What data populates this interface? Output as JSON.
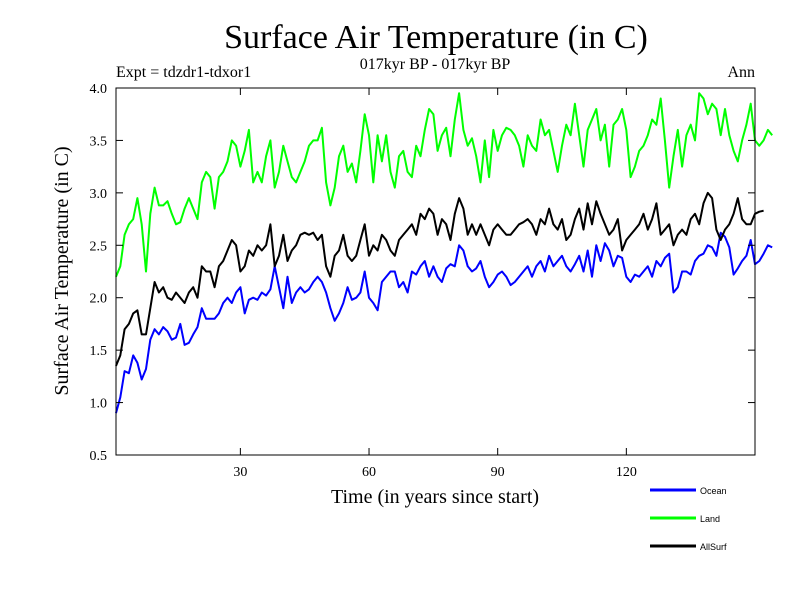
{
  "chart_data": {
    "type": "line",
    "title": "Surface Air Temperature (in C)",
    "subtitle": "017kyr BP - 017kyr BP",
    "experiment": "Expt = tdzdr1-tdxor1",
    "season": "Ann",
    "xlabel": "Time (in years since start)",
    "ylabel": "Surface Air Temperature (in C)",
    "xlim": [
      1,
      150
    ],
    "ylim": [
      0.5,
      4.0
    ],
    "xticks": [
      30,
      60,
      90,
      120
    ],
    "yticks": [
      0.5,
      1.0,
      1.5,
      2.0,
      2.5,
      3.0,
      3.5,
      4.0
    ],
    "ytick_labels": [
      "0.5",
      "1.0",
      "1.5",
      "2.0",
      "2.5",
      "3.0",
      "3.5",
      "4.0"
    ],
    "x_start": 1,
    "series": [
      {
        "name": "Ocean",
        "color": "#0000ff",
        "values": [
          0.9,
          1.05,
          1.3,
          1.28,
          1.45,
          1.38,
          1.22,
          1.32,
          1.6,
          1.7,
          1.65,
          1.72,
          1.68,
          1.6,
          1.62,
          1.75,
          1.55,
          1.57,
          1.65,
          1.72,
          1.9,
          1.8,
          1.8,
          1.8,
          1.85,
          1.95,
          2.0,
          1.95,
          2.05,
          2.1,
          1.85,
          1.98,
          2.0,
          1.98,
          2.05,
          2.02,
          2.08,
          2.3,
          2.1,
          1.9,
          2.2,
          1.95,
          2.05,
          2.1,
          2.05,
          2.08,
          2.15,
          2.2,
          2.15,
          2.05,
          1.9,
          1.78,
          1.85,
          1.95,
          2.1,
          1.98,
          2.0,
          2.05,
          2.25,
          2.0,
          1.95,
          1.88,
          2.15,
          2.2,
          2.25,
          2.25,
          2.1,
          2.15,
          2.05,
          2.25,
          2.22,
          2.3,
          2.35,
          2.2,
          2.3,
          2.2,
          2.15,
          2.28,
          2.32,
          2.3,
          2.5,
          2.45,
          2.3,
          2.25,
          2.28,
          2.35,
          2.2,
          2.1,
          2.15,
          2.22,
          2.25,
          2.2,
          2.12,
          2.15,
          2.2,
          2.25,
          2.3,
          2.2,
          2.3,
          2.35,
          2.25,
          2.4,
          2.3,
          2.35,
          2.4,
          2.3,
          2.25,
          2.32,
          2.4,
          2.25,
          2.45,
          2.2,
          2.5,
          2.35,
          2.52,
          2.45,
          2.3,
          2.4,
          2.38,
          2.2,
          2.15,
          2.22,
          2.2,
          2.25,
          2.3,
          2.2,
          2.35,
          2.3,
          2.38,
          2.42,
          2.05,
          2.1,
          2.25,
          2.25,
          2.22,
          2.35,
          2.4,
          2.42,
          2.5,
          2.48,
          2.4,
          2.62,
          2.58,
          2.48,
          2.22,
          2.28,
          2.35,
          2.4,
          2.55,
          2.32,
          2.35,
          2.42,
          2.5,
          2.48
        ]
      },
      {
        "name": "Land",
        "color": "#00ff00",
        "values": [
          2.2,
          2.3,
          2.6,
          2.7,
          2.75,
          2.95,
          2.7,
          2.25,
          2.8,
          3.05,
          2.88,
          2.88,
          2.92,
          2.8,
          2.7,
          2.72,
          2.85,
          2.95,
          2.85,
          2.75,
          3.1,
          3.2,
          3.15,
          2.85,
          3.15,
          3.2,
          3.3,
          3.5,
          3.45,
          3.25,
          3.4,
          3.6,
          3.1,
          3.2,
          3.1,
          3.35,
          3.5,
          3.05,
          3.2,
          3.45,
          3.3,
          3.15,
          3.1,
          3.2,
          3.3,
          3.45,
          3.5,
          3.5,
          3.62,
          3.1,
          2.88,
          3.05,
          3.35,
          3.45,
          3.2,
          3.28,
          3.1,
          3.4,
          3.75,
          3.55,
          3.1,
          3.55,
          3.3,
          3.55,
          3.2,
          3.05,
          3.35,
          3.4,
          3.2,
          3.15,
          3.45,
          3.35,
          3.6,
          3.8,
          3.75,
          3.4,
          3.55,
          3.62,
          3.35,
          3.7,
          3.95,
          3.6,
          3.45,
          3.52,
          3.35,
          3.1,
          3.5,
          3.15,
          3.6,
          3.4,
          3.55,
          3.62,
          3.6,
          3.55,
          3.45,
          3.25,
          3.55,
          3.45,
          3.4,
          3.7,
          3.55,
          3.6,
          3.4,
          3.2,
          3.45,
          3.65,
          3.55,
          3.85,
          3.55,
          3.25,
          3.6,
          3.7,
          3.8,
          3.5,
          3.65,
          3.25,
          3.65,
          3.7,
          3.8,
          3.6,
          3.15,
          3.25,
          3.4,
          3.45,
          3.55,
          3.7,
          3.65,
          3.9,
          3.5,
          3.05,
          3.35,
          3.6,
          3.25,
          3.55,
          3.65,
          3.5,
          3.95,
          3.9,
          3.75,
          3.85,
          3.8,
          3.55,
          3.8,
          3.55,
          3.4,
          3.3,
          3.5,
          3.65,
          3.85,
          3.5,
          3.45,
          3.5,
          3.6,
          3.55
        ]
      },
      {
        "name": "AllSurf",
        "color": "#000000",
        "values": [
          1.35,
          1.45,
          1.7,
          1.75,
          1.85,
          1.88,
          1.65,
          1.65,
          1.9,
          2.15,
          2.05,
          2.1,
          2.0,
          1.98,
          2.05,
          2.0,
          1.95,
          2.05,
          2.1,
          2.0,
          2.3,
          2.25,
          2.25,
          2.1,
          2.3,
          2.35,
          2.45,
          2.55,
          2.5,
          2.25,
          2.3,
          2.45,
          2.4,
          2.5,
          2.45,
          2.5,
          2.7,
          2.3,
          2.4,
          2.6,
          2.35,
          2.45,
          2.5,
          2.6,
          2.62,
          2.6,
          2.62,
          2.55,
          2.6,
          2.3,
          2.2,
          2.4,
          2.45,
          2.6,
          2.4,
          2.35,
          2.4,
          2.55,
          2.7,
          2.4,
          2.5,
          2.45,
          2.6,
          2.55,
          2.45,
          2.4,
          2.55,
          2.6,
          2.65,
          2.7,
          2.6,
          2.8,
          2.75,
          2.85,
          2.8,
          2.6,
          2.75,
          2.7,
          2.55,
          2.8,
          2.95,
          2.85,
          2.6,
          2.7,
          2.6,
          2.7,
          2.6,
          2.5,
          2.65,
          2.7,
          2.65,
          2.6,
          2.6,
          2.65,
          2.7,
          2.72,
          2.75,
          2.7,
          2.6,
          2.75,
          2.7,
          2.85,
          2.7,
          2.65,
          2.75,
          2.55,
          2.6,
          2.75,
          2.85,
          2.65,
          2.9,
          2.7,
          2.92,
          2.8,
          2.7,
          2.6,
          2.65,
          2.75,
          2.45,
          2.55,
          2.6,
          2.65,
          2.7,
          2.8,
          2.65,
          2.75,
          2.9,
          2.6,
          2.65,
          2.7,
          2.5,
          2.6,
          2.65,
          2.6,
          2.75,
          2.8,
          2.7,
          2.9,
          3.0,
          2.95,
          2.65,
          2.55,
          2.65,
          2.7,
          2.8,
          2.95,
          2.75,
          2.7,
          2.7,
          2.8,
          2.82,
          2.83
        ]
      }
    ]
  }
}
